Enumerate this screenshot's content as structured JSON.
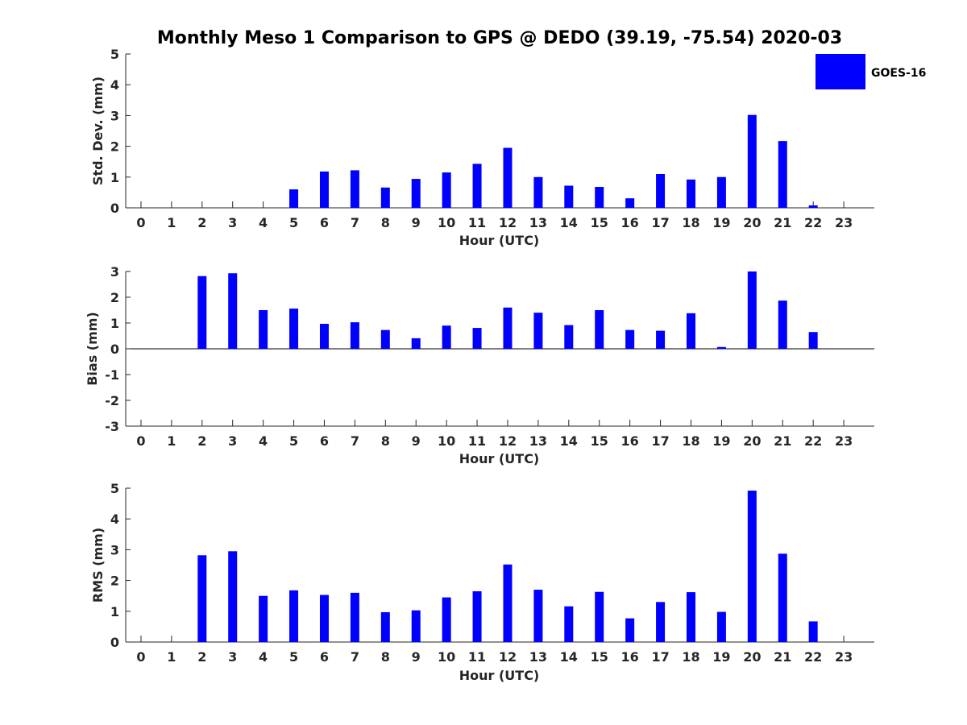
{
  "figure": {
    "title": "Monthly Meso 1 Comparison to GPS @ DEDO (39.19, -75.54) 2020-03",
    "legend": {
      "label": "GOES-16",
      "color": "#0000ff",
      "placement": "top-right"
    }
  },
  "chart_data": [
    {
      "type": "bar",
      "ylabel": "Std. Dev. (mm)",
      "xlabel": "Hour (UTC)",
      "ylim": [
        0,
        5
      ],
      "yticks": [
        0,
        1,
        2,
        3,
        4,
        5
      ],
      "categories": [
        "0",
        "1",
        "2",
        "3",
        "4",
        "5",
        "6",
        "7",
        "8",
        "9",
        "10",
        "11",
        "12",
        "13",
        "14",
        "15",
        "16",
        "17",
        "18",
        "19",
        "20",
        "21",
        "22",
        "23"
      ],
      "series": [
        {
          "name": "GOES-16",
          "color": "#0000ff",
          "values": [
            null,
            null,
            null,
            null,
            null,
            0.6,
            1.18,
            1.22,
            0.66,
            0.94,
            1.15,
            1.43,
            1.95,
            1.0,
            0.72,
            0.68,
            0.31,
            1.1,
            0.92,
            1.0,
            3.02,
            2.17,
            0.08,
            null
          ]
        }
      ]
    },
    {
      "type": "bar",
      "ylabel": "Bias (mm)",
      "xlabel": "Hour (UTC)",
      "ylim": [
        -3,
        3
      ],
      "yticks": [
        -3,
        -2,
        -1,
        0,
        1,
        2,
        3
      ],
      "zero_line": true,
      "categories": [
        "0",
        "1",
        "2",
        "3",
        "4",
        "5",
        "6",
        "7",
        "8",
        "9",
        "10",
        "11",
        "12",
        "13",
        "14",
        "15",
        "16",
        "17",
        "18",
        "19",
        "20",
        "21",
        "22",
        "23"
      ],
      "series": [
        {
          "name": "GOES-16",
          "color": "#0000ff",
          "values": [
            null,
            null,
            2.82,
            2.93,
            1.5,
            1.56,
            0.97,
            1.03,
            0.73,
            0.41,
            0.9,
            0.81,
            1.6,
            1.4,
            0.92,
            1.5,
            0.73,
            0.7,
            1.38,
            0.07,
            3.0,
            1.87,
            0.65,
            null
          ]
        }
      ]
    },
    {
      "type": "bar",
      "ylabel": "RMS (mm)",
      "xlabel": "Hour (UTC)",
      "ylim": [
        0,
        5
      ],
      "yticks": [
        0,
        1,
        2,
        3,
        4,
        5
      ],
      "categories": [
        "0",
        "1",
        "2",
        "3",
        "4",
        "5",
        "6",
        "7",
        "8",
        "9",
        "10",
        "11",
        "12",
        "13",
        "14",
        "15",
        "16",
        "17",
        "18",
        "19",
        "20",
        "21",
        "22",
        "23"
      ],
      "series": [
        {
          "name": "GOES-16",
          "color": "#0000ff",
          "values": [
            null,
            null,
            2.82,
            2.95,
            1.5,
            1.68,
            1.53,
            1.6,
            0.97,
            1.03,
            1.45,
            1.65,
            2.52,
            1.7,
            1.16,
            1.63,
            0.77,
            1.3,
            1.62,
            0.98,
            4.92,
            2.87,
            0.67,
            null
          ]
        }
      ]
    }
  ]
}
